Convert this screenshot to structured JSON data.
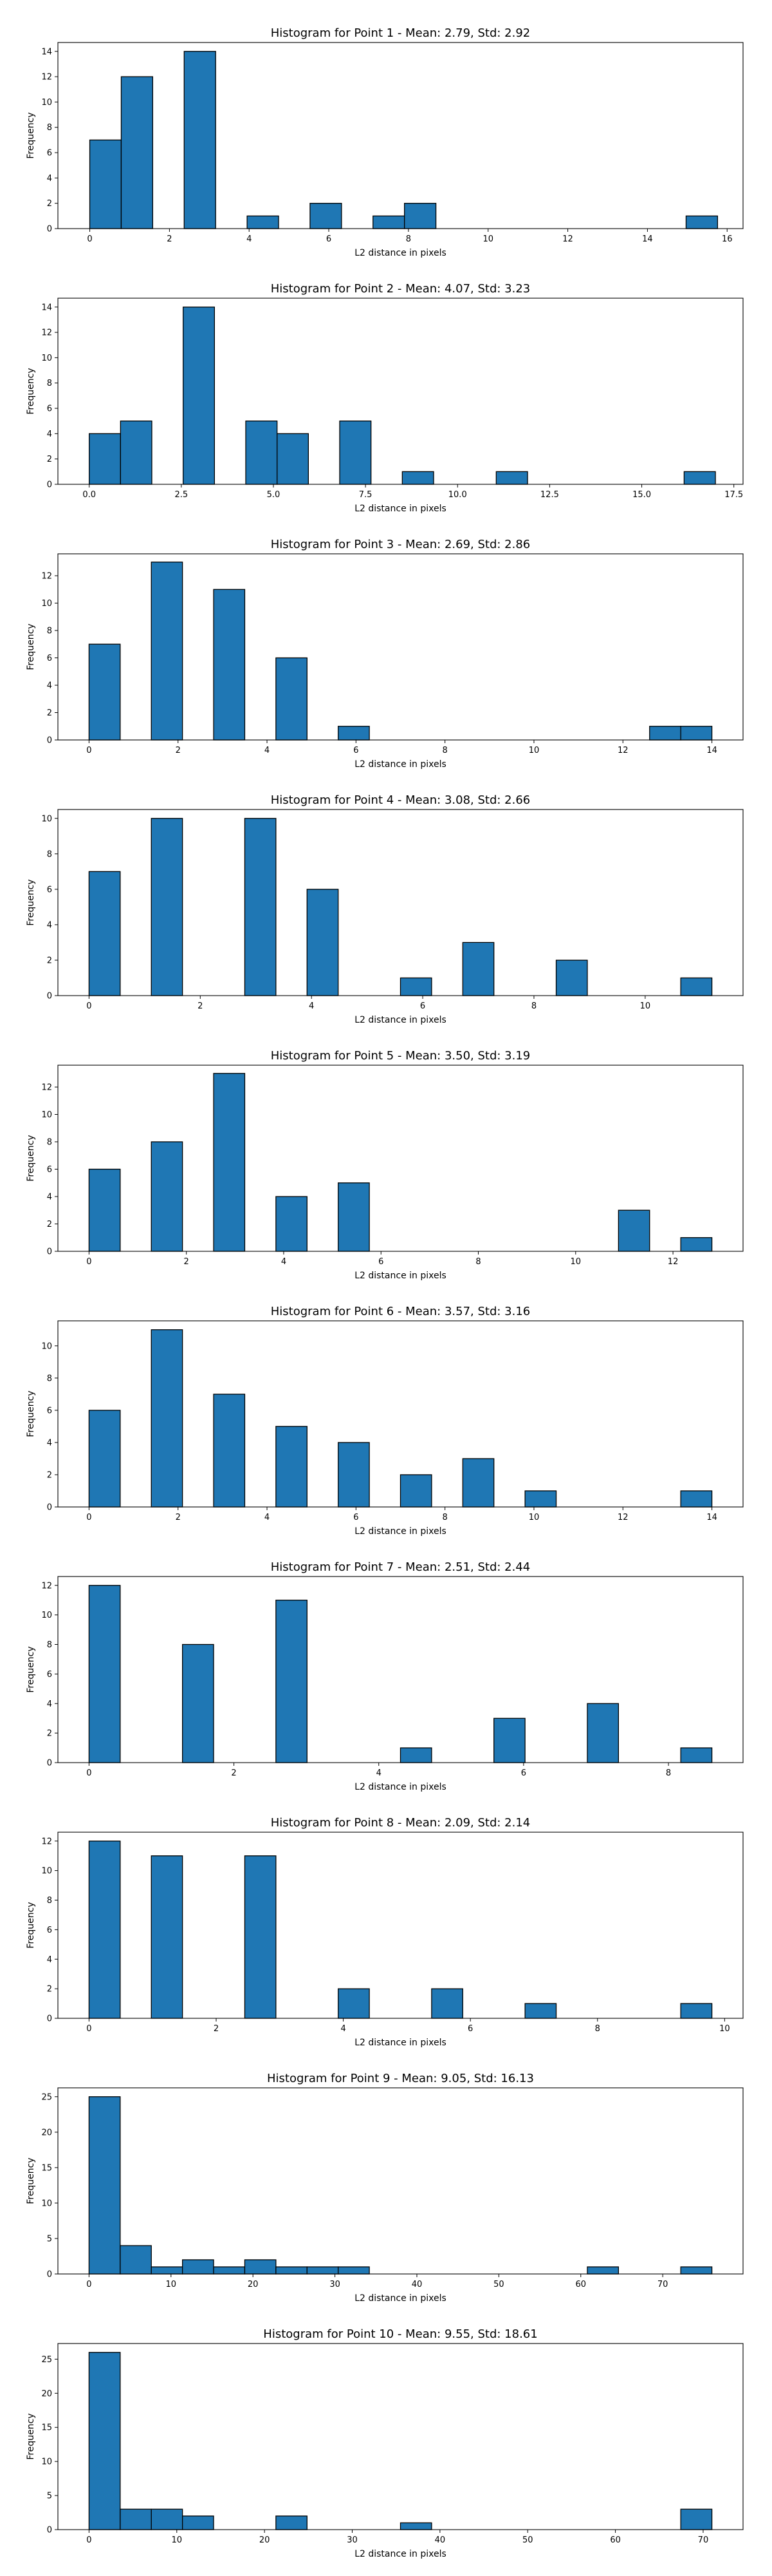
{
  "chart_data": [
    {
      "type": "bar",
      "title": "Histogram for Point 1 - Mean: 2.79, Std: 2.92",
      "xlabel": "L2 distance in pixels",
      "ylabel": "Frequency",
      "xlim": [
        -0.8,
        16.4
      ],
      "ylim": [
        0,
        14.7
      ],
      "xticks": [
        0,
        2,
        4,
        6,
        8,
        10,
        12,
        14,
        16
      ],
      "yticks": [
        0,
        2,
        4,
        6,
        8,
        10,
        12,
        14
      ],
      "bins": [
        [
          0.0,
          0.79,
          7
        ],
        [
          0.79,
          1.58,
          12
        ],
        [
          2.37,
          3.16,
          14
        ],
        [
          3.95,
          4.74,
          1
        ],
        [
          5.53,
          6.32,
          2
        ],
        [
          7.11,
          7.9,
          1
        ],
        [
          7.9,
          8.69,
          2
        ],
        [
          14.97,
          15.76,
          1
        ]
      ]
    },
    {
      "type": "bar",
      "title": "Histogram for Point 2 - Mean: 4.07, Std: 3.23",
      "xlabel": "L2 distance in pixels",
      "ylabel": "Frequency",
      "xlim": [
        -0.85,
        17.75
      ],
      "ylim": [
        0,
        14.7
      ],
      "xticks": [
        0.0,
        2.5,
        5.0,
        7.5,
        10.0,
        12.5,
        15.0,
        17.5
      ],
      "xticklabels": [
        "0.0",
        "2.5",
        "5.0",
        "7.5",
        "10.0",
        "12.5",
        "15.0",
        "17.5"
      ],
      "yticks": [
        0,
        2,
        4,
        6,
        8,
        10,
        12,
        14
      ],
      "bins": [
        [
          0.0,
          0.85,
          4
        ],
        [
          0.85,
          1.7,
          5
        ],
        [
          2.55,
          3.4,
          14
        ],
        [
          4.25,
          5.1,
          5
        ],
        [
          5.1,
          5.95,
          4
        ],
        [
          6.8,
          7.65,
          5
        ],
        [
          8.5,
          9.35,
          1
        ],
        [
          11.05,
          11.9,
          1
        ],
        [
          16.15,
          17.0,
          1
        ]
      ]
    },
    {
      "type": "bar",
      "title": "Histogram for Point 3 - Mean: 2.69, Std: 2.86",
      "xlabel": "L2 distance in pixels",
      "ylabel": "Frequency",
      "xlim": [
        -0.7,
        14.7
      ],
      "ylim": [
        0,
        13.6
      ],
      "xticks": [
        0,
        2,
        4,
        6,
        8,
        10,
        12,
        14
      ],
      "yticks": [
        0,
        2,
        4,
        6,
        8,
        10,
        12
      ],
      "bins": [
        [
          0.0,
          0.7,
          7
        ],
        [
          1.4,
          2.1,
          13
        ],
        [
          2.8,
          3.5,
          11
        ],
        [
          4.2,
          4.9,
          6
        ],
        [
          5.6,
          6.3,
          1
        ],
        [
          12.6,
          13.3,
          1
        ],
        [
          13.3,
          14.0,
          1
        ]
      ]
    },
    {
      "type": "bar",
      "title": "Histogram for Point 4 - Mean: 3.08, Std: 2.66",
      "xlabel": "L2 distance in pixels",
      "ylabel": "Frequency",
      "xlim": [
        -0.56,
        11.76
      ],
      "ylim": [
        0,
        10.5
      ],
      "xticks": [
        0,
        2,
        4,
        6,
        8,
        10
      ],
      "yticks": [
        0,
        2,
        4,
        6,
        8,
        10
      ],
      "bins": [
        [
          0.0,
          0.56,
          7
        ],
        [
          1.12,
          1.68,
          10
        ],
        [
          2.8,
          3.36,
          10
        ],
        [
          3.92,
          4.48,
          6
        ],
        [
          5.6,
          6.16,
          1
        ],
        [
          6.72,
          7.28,
          3
        ],
        [
          8.4,
          8.96,
          2
        ],
        [
          10.64,
          11.2,
          1
        ]
      ]
    },
    {
      "type": "bar",
      "title": "Histogram for Point 5 - Mean: 3.50, Std: 3.19",
      "xlabel": "L2 distance in pixels",
      "ylabel": "Frequency",
      "xlim": [
        -0.64,
        13.44
      ],
      "ylim": [
        0,
        13.6
      ],
      "xticks": [
        0,
        2,
        4,
        6,
        8,
        10,
        12
      ],
      "yticks": [
        0,
        2,
        4,
        6,
        8,
        10,
        12
      ],
      "bins": [
        [
          0.0,
          0.64,
          6
        ],
        [
          1.28,
          1.92,
          8
        ],
        [
          2.56,
          3.2,
          13
        ],
        [
          3.84,
          4.48,
          4
        ],
        [
          5.12,
          5.76,
          5
        ],
        [
          10.88,
          11.52,
          3
        ],
        [
          12.16,
          12.8,
          1
        ]
      ]
    },
    {
      "type": "bar",
      "title": "Histogram for Point 6 - Mean: 3.57, Std: 3.16",
      "xlabel": "L2 distance in pixels",
      "ylabel": "Frequency",
      "xlim": [
        -0.7,
        14.7
      ],
      "ylim": [
        0,
        11.55
      ],
      "xticks": [
        0,
        2,
        4,
        6,
        8,
        10,
        12,
        14
      ],
      "yticks": [
        0,
        2,
        4,
        6,
        8,
        10
      ],
      "bins": [
        [
          0.0,
          0.7,
          6
        ],
        [
          1.4,
          2.1,
          11
        ],
        [
          2.8,
          3.5,
          7
        ],
        [
          4.2,
          4.9,
          5
        ],
        [
          5.6,
          6.3,
          4
        ],
        [
          7.0,
          7.7,
          2
        ],
        [
          8.4,
          9.1,
          3
        ],
        [
          9.8,
          10.5,
          1
        ],
        [
          13.3,
          14.0,
          1
        ]
      ]
    },
    {
      "type": "bar",
      "title": "Histogram for Point 7 - Mean: 2.51, Std: 2.44",
      "xlabel": "L2 distance in pixels",
      "ylabel": "Frequency",
      "xlim": [
        -0.43,
        9.03
      ],
      "ylim": [
        0,
        12.6
      ],
      "xticks": [
        0,
        2,
        4,
        6,
        8
      ],
      "yticks": [
        0,
        2,
        4,
        6,
        8,
        10,
        12
      ],
      "bins": [
        [
          0.0,
          0.43,
          12
        ],
        [
          1.29,
          1.72,
          8
        ],
        [
          2.58,
          3.01,
          11
        ],
        [
          4.3,
          4.73,
          1
        ],
        [
          5.59,
          6.02,
          3
        ],
        [
          6.88,
          7.31,
          4
        ],
        [
          8.17,
          8.6,
          1
        ]
      ]
    },
    {
      "type": "bar",
      "title": "Histogram for Point 8 - Mean: 2.09, Std: 2.14",
      "xlabel": "L2 distance in pixels",
      "ylabel": "Frequency",
      "xlim": [
        -0.49,
        10.29
      ],
      "ylim": [
        0,
        12.6
      ],
      "xticks": [
        0,
        2,
        4,
        6,
        8,
        10
      ],
      "yticks": [
        0,
        2,
        4,
        6,
        8,
        10,
        12
      ],
      "bins": [
        [
          0.0,
          0.49,
          12
        ],
        [
          0.98,
          1.47,
          11
        ],
        [
          2.45,
          2.94,
          11
        ],
        [
          3.92,
          4.41,
          2
        ],
        [
          5.39,
          5.88,
          2
        ],
        [
          6.86,
          7.35,
          1
        ],
        [
          9.31,
          9.8,
          1
        ]
      ]
    },
    {
      "type": "bar",
      "title": "Histogram for Point 9 - Mean: 9.05, Std: 16.13",
      "xlabel": "L2 distance in pixels",
      "ylabel": "Frequency",
      "xlim": [
        -3.8,
        79.8
      ],
      "ylim": [
        0,
        26.25
      ],
      "xticks": [
        0,
        10,
        20,
        30,
        40,
        50,
        60,
        70
      ],
      "yticks": [
        0,
        5,
        10,
        15,
        20,
        25
      ],
      "bins": [
        [
          0.0,
          3.8,
          25
        ],
        [
          3.8,
          7.6,
          4
        ],
        [
          7.6,
          11.4,
          1
        ],
        [
          11.4,
          15.2,
          2
        ],
        [
          15.2,
          19.0,
          1
        ],
        [
          19.0,
          22.8,
          2
        ],
        [
          22.8,
          26.6,
          1
        ],
        [
          26.6,
          30.4,
          1
        ],
        [
          30.4,
          34.2,
          1
        ],
        [
          60.8,
          64.6,
          1
        ],
        [
          72.2,
          76.0,
          1
        ]
      ]
    },
    {
      "type": "bar",
      "title": "Histogram for Point 10 - Mean: 9.55, Std: 18.61",
      "xlabel": "L2 distance in pixels",
      "ylabel": "Frequency",
      "xlim": [
        -3.55,
        74.55
      ],
      "ylim": [
        0,
        27.3
      ],
      "xticks": [
        0,
        10,
        20,
        30,
        40,
        50,
        60,
        70
      ],
      "yticks": [
        0,
        5,
        10,
        15,
        20,
        25
      ],
      "bins": [
        [
          0.0,
          3.55,
          26
        ],
        [
          3.55,
          7.1,
          3
        ],
        [
          7.1,
          10.65,
          3
        ],
        [
          10.65,
          14.2,
          2
        ],
        [
          21.3,
          24.85,
          2
        ],
        [
          35.5,
          39.05,
          1
        ],
        [
          67.45,
          71.0,
          3
        ]
      ]
    }
  ]
}
